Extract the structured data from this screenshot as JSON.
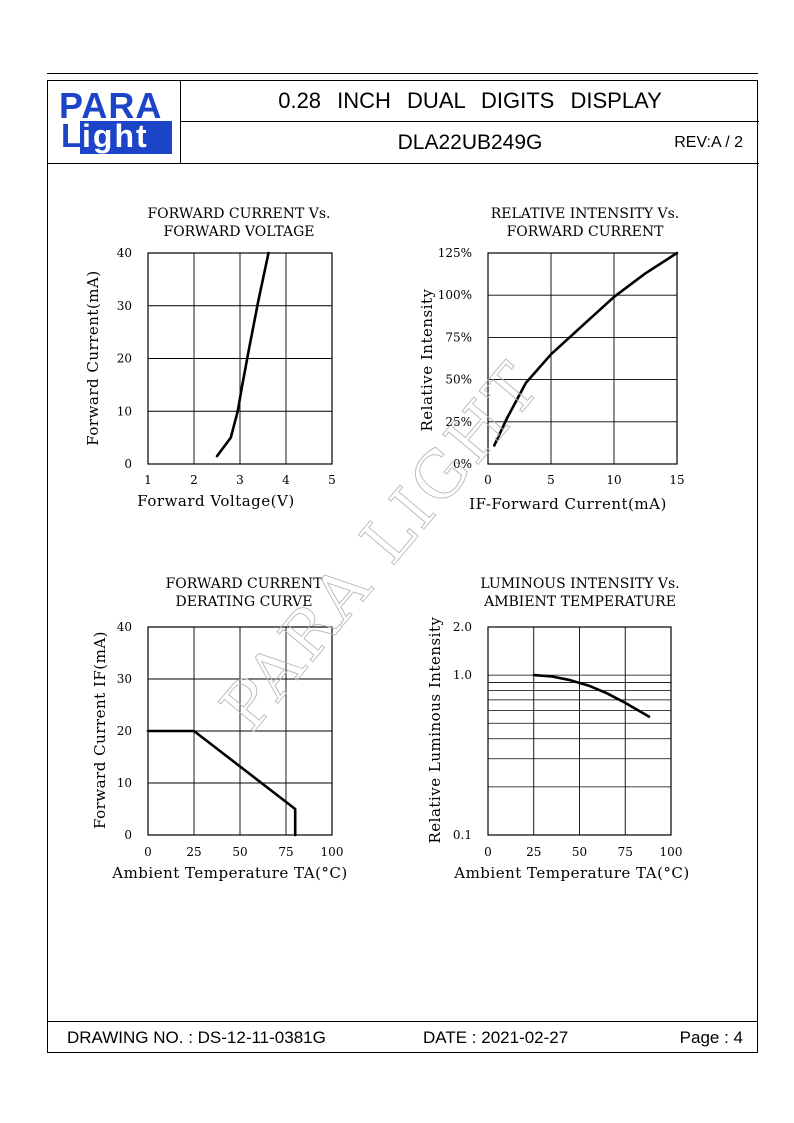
{
  "header": {
    "logo_top": "PARA",
    "logo_l": "L",
    "logo_bottom": "ight",
    "title": "0.28 INCH DUAL DIGITS DISPLAY",
    "model": "DLA22UB249G",
    "rev": "REV:A / 2"
  },
  "watermark": "PARA LIGHT",
  "footer": {
    "drawing_no": "DRAWING NO. : DS-12-11-0381G",
    "date": "DATE : 2021-02-27",
    "page": "Page : 4"
  },
  "colors": {
    "logo_blue": "#1c44c9"
  },
  "chart_data": [
    {
      "type": "line",
      "title": [
        "FORWARD CURRENT Vs.",
        "FORWARD VOLTAGE"
      ],
      "xlabel": "Forward Voltage(V)",
      "ylabel": "Forward Current(mA)",
      "xlim": [
        1,
        5
      ],
      "ylim": [
        0,
        40
      ],
      "xticks": [
        "1",
        "2",
        "3",
        "4",
        "5"
      ],
      "yticks": [
        "0",
        "10",
        "20",
        "30",
        "40"
      ],
      "grid": true,
      "series": [
        {
          "x": [
            2.5,
            2.8,
            2.95,
            3.05,
            3.2,
            3.4,
            3.62
          ],
          "y": [
            1.5,
            5,
            10,
            15,
            22,
            31,
            40
          ]
        }
      ]
    },
    {
      "type": "line",
      "title": [
        "RELATIVE INTENSITY Vs.",
        "FORWARD CURRENT"
      ],
      "xlabel": "IF-Forward Current(mA)",
      "ylabel": "Relative Intensity",
      "xlim": [
        0,
        15
      ],
      "ylim": [
        0,
        125
      ],
      "xticks": [
        "0",
        "5",
        "10",
        "15"
      ],
      "yticks": [
        "0%",
        "25%",
        "50%",
        "75%",
        "100%",
        "125%"
      ],
      "grid": true,
      "series": [
        {
          "x": [
            0.5,
            1.5,
            3,
            5,
            7.5,
            10,
            12.5,
            15
          ],
          "y": [
            11,
            27,
            48,
            65,
            82,
            99,
            113,
            125
          ]
        }
      ]
    },
    {
      "type": "line",
      "title": [
        "FORWARD CURRENT",
        "DERATING CURVE"
      ],
      "xlabel": "Ambient Temperature TA(°C)",
      "ylabel": "Forward Current IF(mA)",
      "xlim": [
        0,
        100
      ],
      "ylim": [
        0,
        40
      ],
      "xticks": [
        "0",
        "25",
        "50",
        "75",
        "100"
      ],
      "yticks": [
        "0",
        "10",
        "20",
        "30",
        "40"
      ],
      "grid": true,
      "series": [
        {
          "x": [
            0,
            25,
            80,
            80
          ],
          "y": [
            20,
            20,
            5,
            0
          ]
        }
      ]
    },
    {
      "type": "line",
      "title": [
        "LUMINOUS INTENSITY Vs.",
        "AMBIENT TEMPERATURE"
      ],
      "xlabel": "Ambient Temperature TA(°C)",
      "ylabel": "Relative Luminous Intensity",
      "xlim": [
        0,
        100
      ],
      "ylim": [
        0.1,
        2.0
      ],
      "yscale": "log",
      "xticks": [
        "0",
        "25",
        "50",
        "75",
        "100"
      ],
      "yticks": [
        "0.1",
        "1.0",
        "2.0"
      ],
      "grid": true,
      "series": [
        {
          "x": [
            25,
            35,
            45,
            55,
            65,
            75,
            88
          ],
          "y": [
            1.0,
            0.98,
            0.93,
            0.86,
            0.77,
            0.67,
            0.55
          ]
        }
      ]
    }
  ]
}
